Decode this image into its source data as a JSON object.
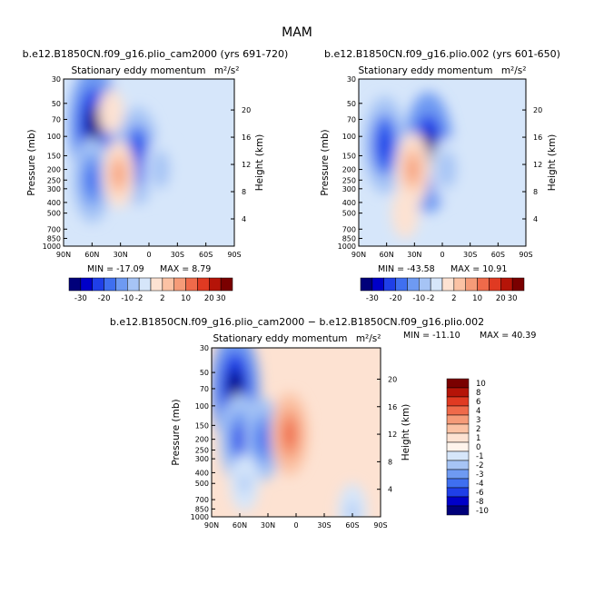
{
  "season": "MAM",
  "chart_data": [
    {
      "type": "heatmap",
      "run_title": "b.e12.B1850CN.f09_g16.plio_cam2000 (yrs 691-720)",
      "variable": "Stationary eddy momentum",
      "units": "m²/s²",
      "ylabel": "Pressure (mb)",
      "ylabel_right": "Height (km)",
      "x_ticks": [
        "90N",
        "60N",
        "30N",
        "0",
        "30S",
        "60S",
        "90S"
      ],
      "y_ticks": [
        "30",
        "50",
        "70",
        "100",
        "150",
        "200",
        "250",
        "300",
        "400",
        "500",
        "700",
        "850",
        "1000"
      ],
      "height_ticks": [
        "4",
        "8",
        "12",
        "16",
        "20"
      ],
      "min_label": "MIN = -17.09",
      "max_label": "MAX =  8.79",
      "colorbar_levels": [
        "-30",
        "-20",
        "-10",
        "-2",
        "2",
        "10",
        "20",
        "30"
      ],
      "blobs": [
        {
          "lat": 58,
          "p": 80,
          "value": -14
        },
        {
          "lat": 60,
          "p": 250,
          "value": -8
        },
        {
          "lat": 12,
          "p": 150,
          "value": -10
        },
        {
          "lat": 32,
          "p": 220,
          "value": 5
        },
        {
          "lat": -12,
          "p": 200,
          "value": -4
        },
        {
          "lat": 40,
          "p": 60,
          "value": 1
        }
      ]
    },
    {
      "type": "heatmap",
      "run_title": "b.e12.B1850CN.f09_g16.plio.002 (yrs 601-650)",
      "variable": "Stationary eddy momentum",
      "units": "m²/s²",
      "ylabel": "Pressure (mb)",
      "ylabel_right": "Height (km)",
      "x_ticks": [
        "90N",
        "60N",
        "30N",
        "0",
        "30S",
        "60S",
        "90S"
      ],
      "y_ticks": [
        "30",
        "50",
        "70",
        "100",
        "150",
        "200",
        "250",
        "300",
        "400",
        "500",
        "700",
        "850",
        "1000"
      ],
      "height_ticks": [
        "4",
        "8",
        "12",
        "16",
        "20"
      ],
      "min_label": "MIN = -43.58",
      "max_label": "MAX = 10.91",
      "colorbar_levels": [
        "-30",
        "-20",
        "-10",
        "-2",
        "2",
        "10",
        "20",
        "30"
      ],
      "blobs": [
        {
          "lat": 62,
          "p": 120,
          "value": -10
        },
        {
          "lat": 15,
          "p": 140,
          "value": -14
        },
        {
          "lat": 32,
          "p": 200,
          "value": 6
        },
        {
          "lat": -5,
          "p": 200,
          "value": -4
        },
        {
          "lat": 40,
          "p": 500,
          "value": 2
        }
      ]
    },
    {
      "type": "heatmap",
      "diff_title": "b.e12.B1850CN.f09_g16.plio_cam2000 − b.e12.B1850CN.f09_g16.plio.002",
      "variable": "Stationary eddy momentum",
      "units": "m²/s²",
      "ylabel": "Pressure (mb)",
      "ylabel_right": "Height (km)",
      "x_ticks": [
        "90N",
        "60N",
        "30N",
        "0",
        "30S",
        "60S",
        "90S"
      ],
      "y_ticks": [
        "30",
        "50",
        "70",
        "100",
        "150",
        "200",
        "250",
        "300",
        "400",
        "500",
        "700",
        "850",
        "1000"
      ],
      "height_ticks": [
        "4",
        "8",
        "12",
        "16",
        "20"
      ],
      "min_label": "MIN = -11.10",
      "max_label": "MAX =  40.39",
      "colorbar_levels": [
        "10",
        "8",
        "6",
        "4",
        "3",
        "2",
        "1",
        "0",
        "-1",
        "-2",
        "-3",
        "-4",
        "-6",
        "-8",
        "-10"
      ],
      "blobs": [
        {
          "lat": 65,
          "p": 70,
          "value": -9
        },
        {
          "lat": 60,
          "p": 200,
          "value": -6
        },
        {
          "lat": 35,
          "p": 200,
          "value": -5
        },
        {
          "lat": 7,
          "p": 180,
          "value": 5
        },
        {
          "lat": 55,
          "p": 500,
          "value": -2
        },
        {
          "lat": -60,
          "p": 900,
          "value": -2
        }
      ]
    }
  ]
}
